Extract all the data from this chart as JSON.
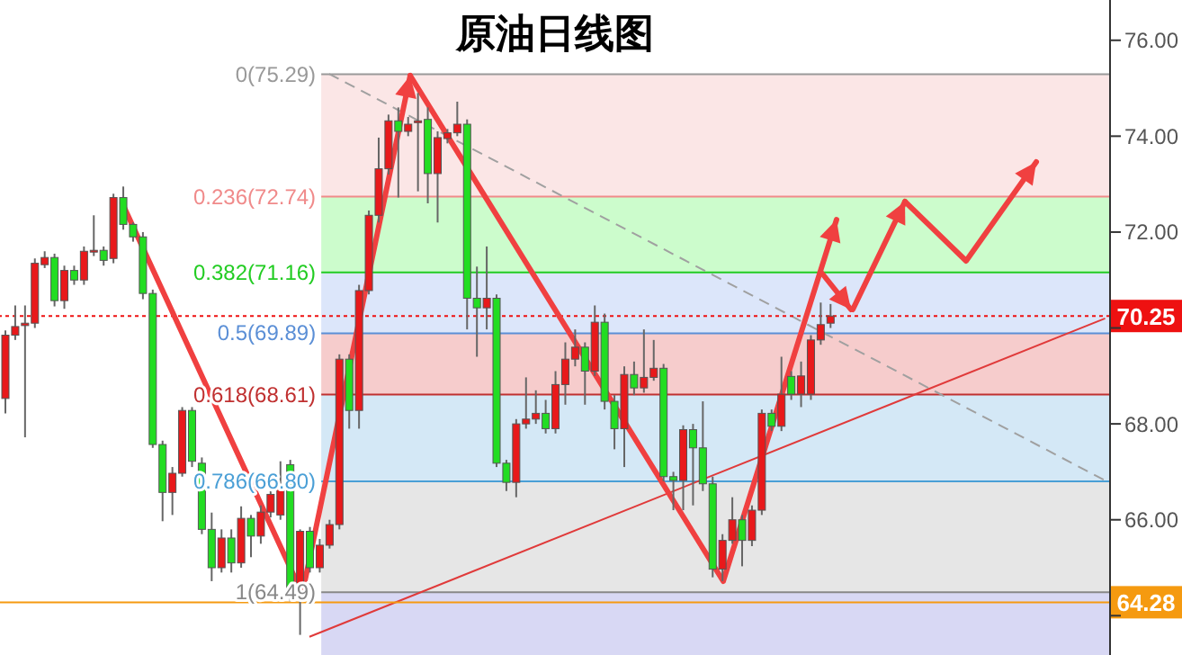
{
  "chart_data": {
    "type": "candlestick",
    "title": "原油日线图",
    "categories": [
      null,
      null,
      null,
      null,
      null,
      null,
      null,
      null,
      null,
      null,
      null,
      null,
      null,
      null,
      null,
      null,
      null,
      null,
      null,
      null,
      null,
      null,
      null,
      null,
      null,
      null,
      null,
      null,
      null,
      null,
      null,
      null,
      null,
      null,
      null,
      null,
      null,
      null,
      null,
      null,
      null,
      null,
      null,
      null,
      null,
      null,
      null,
      null,
      null,
      null,
      null,
      null,
      null,
      null,
      null,
      null,
      null,
      null,
      null,
      null,
      null,
      null,
      null,
      null,
      null,
      null,
      null,
      null,
      null,
      null,
      null,
      null,
      null,
      null,
      null,
      null,
      null,
      null,
      null,
      null,
      null,
      null,
      null,
      null,
      null,
      null,
      null,
      null,
      null,
      null,
      null,
      null,
      null,
      null,
      null,
      null,
      null,
      null,
      null,
      null,
      null,
      null,
      null,
      null,
      null,
      null,
      null,
      null,
      null,
      null,
      null,
      null,
      null
    ],
    "ohlc": [
      [
        68.53,
        69.95,
        68.22,
        69.85
      ],
      [
        69.85,
        70.47,
        69.75,
        70.03
      ],
      [
        70.05,
        70.47,
        67.72,
        70.1
      ],
      [
        70.1,
        71.45,
        70.0,
        71.35
      ],
      [
        71.32,
        71.6,
        71.25,
        71.47
      ],
      [
        71.47,
        71.55,
        70.45,
        70.57
      ],
      [
        70.57,
        71.3,
        70.4,
        71.2
      ],
      [
        71.2,
        71.3,
        70.9,
        71.0
      ],
      [
        71.0,
        71.7,
        70.9,
        71.6
      ],
      [
        71.59,
        72.35,
        71.5,
        71.62
      ],
      [
        71.62,
        71.7,
        71.3,
        71.41
      ],
      [
        71.45,
        72.8,
        71.35,
        72.72
      ],
      [
        72.72,
        72.95,
        72.05,
        72.16
      ],
      [
        72.16,
        72.2,
        71.8,
        71.9
      ],
      [
        71.9,
        72.0,
        70.6,
        70.72
      ],
      [
        70.72,
        70.8,
        67.5,
        67.57
      ],
      [
        67.57,
        67.65,
        65.97,
        66.57
      ],
      [
        66.57,
        67.1,
        66.1,
        66.97
      ],
      [
        66.97,
        68.35,
        66.9,
        68.28
      ],
      [
        68.28,
        68.35,
        67.1,
        67.22
      ],
      [
        67.18,
        67.3,
        65.7,
        65.8
      ],
      [
        65.8,
        66.15,
        64.72,
        65.0
      ],
      [
        65.0,
        65.8,
        64.9,
        65.62
      ],
      [
        65.62,
        65.8,
        64.9,
        65.1
      ],
      [
        65.1,
        66.28,
        65.0,
        66.03
      ],
      [
        66.03,
        66.1,
        65.22,
        65.66
      ],
      [
        65.66,
        66.3,
        65.5,
        66.16
      ],
      [
        66.16,
        66.6,
        66.05,
        66.53
      ],
      [
        66.1,
        67.22,
        66.0,
        66.72
      ],
      [
        67.15,
        67.25,
        64.3,
        64.41
      ],
      [
        64.47,
        65.8,
        63.6,
        65.76
      ],
      [
        65.76,
        65.85,
        64.9,
        65.0
      ],
      [
        65.0,
        65.6,
        64.9,
        65.47
      ],
      [
        65.47,
        66.0,
        65.4,
        65.9
      ],
      [
        65.9,
        69.45,
        65.8,
        69.35
      ],
      [
        69.35,
        69.45,
        67.9,
        68.28
      ],
      [
        68.28,
        70.9,
        67.9,
        70.78
      ],
      [
        70.78,
        72.45,
        70.7,
        72.35
      ],
      [
        72.35,
        73.97,
        72.2,
        73.32
      ],
      [
        73.32,
        74.45,
        73.2,
        74.32
      ],
      [
        74.32,
        74.6,
        72.72,
        74.1
      ],
      [
        74.1,
        74.4,
        74.0,
        74.25
      ],
      [
        74.3,
        74.9,
        72.85,
        74.32
      ],
      [
        74.35,
        74.6,
        72.6,
        73.22
      ],
      [
        73.22,
        74.1,
        72.2,
        73.97
      ],
      [
        73.95,
        74.15,
        73.85,
        74.07
      ],
      [
        74.07,
        74.72,
        74.0,
        74.25
      ],
      [
        74.25,
        74.35,
        69.97,
        70.62
      ],
      [
        70.62,
        71.28,
        69.4,
        70.42
      ],
      [
        70.42,
        71.7,
        69.97,
        70.62
      ],
      [
        70.62,
        70.7,
        67.1,
        67.18
      ],
      [
        67.18,
        67.25,
        66.6,
        66.78
      ],
      [
        66.78,
        68.1,
        66.47,
        68.0
      ],
      [
        68.0,
        68.97,
        67.9,
        68.1
      ],
      [
        68.1,
        68.7,
        68.0,
        68.22
      ],
      [
        68.22,
        68.5,
        67.8,
        67.9
      ],
      [
        67.9,
        69.1,
        67.8,
        68.82
      ],
      [
        68.82,
        69.7,
        68.4,
        69.35
      ],
      [
        69.35,
        69.97,
        69.2,
        69.6
      ],
      [
        69.6,
        69.7,
        68.4,
        69.1
      ],
      [
        69.1,
        70.47,
        69.0,
        70.12
      ],
      [
        70.12,
        70.3,
        68.3,
        68.47
      ],
      [
        68.47,
        68.6,
        67.47,
        67.9
      ],
      [
        67.9,
        69.2,
        67.1,
        69.03
      ],
      [
        69.03,
        69.3,
        68.6,
        68.75
      ],
      [
        68.75,
        69.97,
        68.65,
        68.97
      ],
      [
        68.97,
        69.75,
        68.9,
        69.16
      ],
      [
        69.16,
        69.25,
        66.8,
        66.9
      ],
      [
        66.9,
        67.0,
        66.2,
        66.82
      ],
      [
        66.82,
        67.97,
        66.2,
        67.88
      ],
      [
        67.88,
        68.0,
        66.3,
        67.5
      ],
      [
        67.5,
        68.47,
        66.6,
        66.75
      ],
      [
        66.75,
        66.9,
        64.8,
        64.97
      ],
      [
        64.97,
        65.7,
        64.72,
        65.57
      ],
      [
        65.57,
        66.47,
        65.5,
        66.0
      ],
      [
        66.0,
        66.1,
        65.03,
        65.57
      ],
      [
        65.57,
        66.3,
        65.45,
        66.2
      ],
      [
        66.2,
        68.3,
        66.1,
        68.22
      ],
      [
        68.22,
        68.3,
        67.85,
        67.95
      ],
      [
        67.95,
        69.4,
        67.85,
        68.62
      ],
      [
        68.99,
        69.1,
        68.5,
        68.62
      ],
      [
        68.62,
        69.3,
        68.35,
        69.0
      ],
      [
        68.62,
        69.85,
        68.5,
        69.75
      ],
      [
        69.75,
        70.53,
        69.65,
        70.07
      ],
      [
        70.1,
        70.5,
        70.0,
        70.25
      ],
      null,
      null,
      null,
      null,
      null,
      null,
      null,
      null,
      null,
      null,
      null,
      null,
      null,
      null,
      null,
      null,
      null,
      null,
      null,
      null,
      null,
      null,
      null,
      null,
      null,
      null,
      null,
      null
    ],
    "colors": [
      "#e8191b",
      "#e8191b",
      "#e8191b",
      "#e8191b",
      "#e8191b",
      "#22dd22",
      "#e8191b",
      "#22dd22",
      "#e8191b",
      "#e8191b",
      "#22dd22",
      "#e8191b",
      "#22dd22",
      "#22dd22",
      "#22dd22",
      "#22dd22",
      "#22dd22",
      "#e8191b",
      "#e8191b",
      "#22dd22",
      "#22dd22",
      "#22dd22",
      "#e8191b",
      "#22dd22",
      "#e8191b",
      "#22dd22",
      "#e8191b",
      "#e8191b",
      "#e8191b",
      "#22dd22",
      "#e8191b",
      "#22dd22",
      "#e8191b",
      "#e8191b",
      "#e8191b",
      "#22dd22",
      "#e8191b",
      "#e8191b",
      "#e8191b",
      "#e8191b",
      "#22dd22",
      "#e8191b",
      "#e8191b",
      "#22dd22",
      "#e8191b",
      "#e8191b",
      "#e8191b",
      "#22dd22",
      "#22dd22",
      "#e8191b",
      "#22dd22",
      "#22dd22",
      "#e8191b",
      "#e8191b",
      "#e8191b",
      "#22dd22",
      "#e8191b",
      "#e8191b",
      "#e8191b",
      "#22dd22",
      "#e8191b",
      "#22dd22",
      "#22dd22",
      "#e8191b",
      "#22dd22",
      "#e8191b",
      "#e8191b",
      "#22dd22",
      "#22dd22",
      "#e8191b",
      "#22dd22",
      "#22dd22",
      "#22dd22",
      "#e8191b",
      "#e8191b",
      "#22dd22",
      "#e8191b",
      "#e8191b",
      "#22dd22",
      "#e8191b",
      "#22dd22",
      "#e8191b",
      "#e8191b",
      "#e8191b",
      "#e8191b",
      null,
      null,
      null,
      null,
      null,
      null,
      null,
      null,
      null,
      null,
      null,
      null,
      null,
      null,
      null,
      null,
      null,
      null,
      null,
      null,
      null,
      null,
      null,
      null,
      null,
      null,
      null,
      null
    ],
    "series": [
      {
        "type": "line",
        "color": "#a0a0a0",
        "line_style": "dashed",
        "values": [
          null,
          null,
          null,
          null,
          null,
          null,
          null,
          null,
          null,
          null,
          null,
          null,
          null,
          null,
          null,
          null,
          null,
          null,
          null,
          null,
          null,
          null,
          null,
          null,
          null,
          null,
          null,
          null,
          null,
          null,
          null,
          null,
          null,
          75.3,
          null,
          null,
          null,
          null,
          null,
          null,
          null,
          null,
          null,
          null,
          null,
          null,
          null,
          null,
          null,
          null,
          null,
          null,
          null,
          null,
          null,
          null,
          null,
          null,
          null,
          null,
          null,
          null,
          null,
          null,
          null,
          null,
          null,
          null,
          null,
          null,
          null,
          null,
          null,
          null,
          null,
          null,
          null,
          null,
          null,
          null,
          null,
          null,
          null,
          null,
          null,
          null,
          null,
          null,
          null,
          null,
          null,
          null,
          null,
          null,
          null,
          null,
          null,
          null,
          null,
          null,
          null,
          null,
          null,
          null,
          null,
          null,
          null,
          null,
          null,
          null,
          null,
          null,
          66.82
        ]
      },
      {
        "type": "line",
        "color": "#e03a3a",
        "line_style": "solid",
        "values": [
          null,
          null,
          null,
          null,
          null,
          null,
          null,
          null,
          null,
          null,
          null,
          null,
          null,
          null,
          null,
          null,
          null,
          null,
          null,
          null,
          null,
          null,
          null,
          null,
          null,
          null,
          null,
          null,
          null,
          null,
          null,
          63.56,
          null,
          null,
          null,
          null,
          null,
          null,
          null,
          null,
          null,
          null,
          null,
          null,
          null,
          null,
          null,
          null,
          null,
          null,
          null,
          null,
          null,
          null,
          null,
          null,
          null,
          null,
          null,
          null,
          null,
          null,
          null,
          null,
          null,
          null,
          null,
          null,
          null,
          null,
          null,
          null,
          null,
          null,
          null,
          null,
          null,
          null,
          null,
          null,
          null,
          null,
          null,
          null,
          null,
          null,
          null,
          null,
          null,
          null,
          null,
          null,
          null,
          null,
          null,
          null,
          null,
          null,
          null,
          null,
          null,
          null,
          null,
          null,
          null,
          null,
          null,
          null,
          null,
          null,
          null,
          null,
          70.2
        ]
      }
    ],
    "ylim": [
      63.18,
      76.84
    ],
    "yticks": [
      {
        "value": 64,
        "label": null
      },
      {
        "value": 66,
        "label": "66.00"
      },
      {
        "value": 68,
        "label": "68.00"
      },
      {
        "value": 70,
        "label": null
      },
      {
        "value": 72,
        "label": "72.00"
      },
      {
        "value": 74,
        "label": "74.00"
      },
      {
        "value": 76,
        "label": "76.00"
      }
    ],
    "tick_labels": "y",
    "bands": [
      {
        "axis": "y",
        "from": 72.74,
        "to": 75.29,
        "color": "#fbe6e6"
      },
      {
        "axis": "y",
        "from": 71.16,
        "to": 72.74,
        "color": "#ccfccc"
      },
      {
        "axis": "y",
        "from": 69.89,
        "to": 71.16,
        "color": "#dce6fa"
      },
      {
        "axis": "y",
        "from": 68.61,
        "to": 69.89,
        "color": "#f6cccc"
      },
      {
        "axis": "y",
        "from": 66.8,
        "to": 68.61,
        "color": "#d4e8f6"
      },
      {
        "axis": "y",
        "from": 64.49,
        "to": 66.8,
        "color": "#e6e6e6"
      },
      {
        "axis": "y",
        "from": 63.18,
        "to": 64.49,
        "color": "#d8d8f4"
      }
    ],
    "ref_lines": [
      {
        "axis": "y",
        "value": 75.29,
        "label": "0(75.29)",
        "color": "#999999"
      },
      {
        "axis": "y",
        "value": 72.74,
        "label": "0.236(72.74)",
        "color": "#f08a8a"
      },
      {
        "axis": "y",
        "value": 71.16,
        "label": "0.382(71.16)",
        "color": "#22cc22"
      },
      {
        "axis": "y",
        "value": 69.89,
        "label": "0.5(69.89)",
        "color": "#5b8fd6"
      },
      {
        "axis": "y",
        "value": 68.61,
        "label": "0.618(68.61)",
        "color": "#c03030"
      },
      {
        "axis": "y",
        "value": 66.8,
        "label": "0.786(66.80)",
        "color": "#4a9fd6"
      },
      {
        "axis": "y",
        "value": 64.49,
        "label": "1(64.49)",
        "color": "#888888"
      },
      {
        "axis": "y",
        "value": 70.25,
        "label": "70.25",
        "color": "#ee1111",
        "line_style": "dotted"
      },
      {
        "axis": "y",
        "value": 64.28,
        "label": "64.28",
        "color": "#f59a10",
        "line_style": "solid"
      }
    ],
    "grid": false,
    "legend": false
  }
}
